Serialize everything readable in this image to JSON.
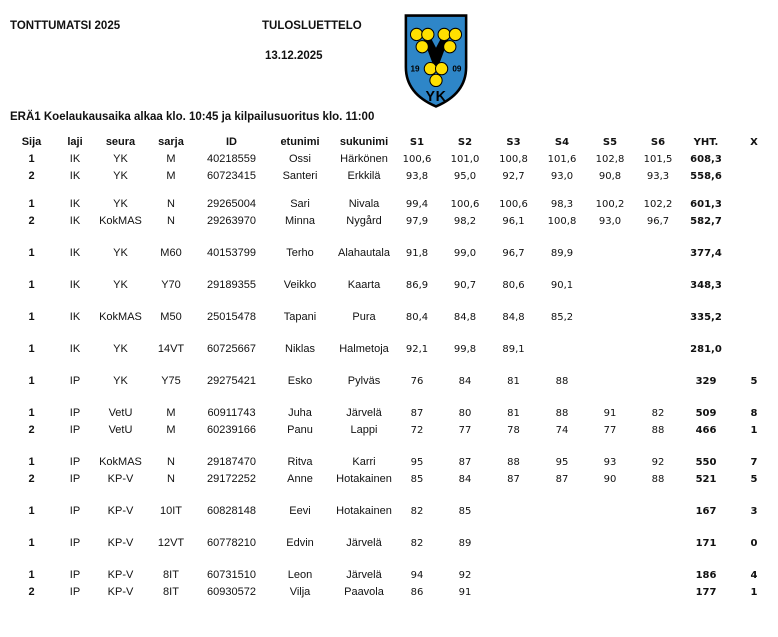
{
  "header": {
    "event_title": "TONTTUMATSI 2025",
    "doc_type": "TULOSLUETTELO",
    "date": "13.12.2025",
    "heat_info": "ERÄ1 Koelaukausaika alkaa klo. 10:45 ja kilpailusuoritus klo. 11:00"
  },
  "logo": {
    "year_left": "19",
    "year_right": "09",
    "initials": "YK",
    "colors": {
      "shield": "#2e86c8",
      "ball": "#ffe000",
      "outline": "#000000"
    }
  },
  "table": {
    "columns": [
      "Sija",
      "laji",
      "seura",
      "sarja",
      "ID",
      "etunimi",
      "sukunimi",
      "S1",
      "S2",
      "S3",
      "S4",
      "S5",
      "S6",
      "YHT.",
      "X"
    ],
    "groups": [
      {
        "rows": [
          {
            "sija": "1",
            "laji": "IK",
            "seura": "YK",
            "sarja": "M",
            "id": "40218559",
            "etunimi": "Ossi",
            "sukunimi": "Härkönen",
            "s": [
              "100,6",
              "101,0",
              "100,8",
              "101,6",
              "102,8",
              "101,5"
            ],
            "yht": "608,3",
            "x": ""
          },
          {
            "sija": "2",
            "laji": "IK",
            "seura": "YK",
            "sarja": "M",
            "id": "60723415",
            "etunimi": "Santeri",
            "sukunimi": "Erkkilä",
            "s": [
              "93,8",
              "95,0",
              "92,7",
              "93,0",
              "90,8",
              "93,3"
            ],
            "yht": "558,6",
            "x": ""
          }
        ]
      },
      {
        "rows": [
          {
            "sija": "1",
            "laji": "IK",
            "seura": "YK",
            "sarja": "N",
            "id": "29265004",
            "etunimi": "Sari",
            "sukunimi": "Nivala",
            "s": [
              "99,4",
              "100,6",
              "100,6",
              "98,3",
              "100,2",
              "102,2"
            ],
            "yht": "601,3",
            "x": ""
          },
          {
            "sija": "2",
            "laji": "IK",
            "seura": "KokMAS",
            "sarja": "N",
            "id": "29263970",
            "etunimi": "Minna",
            "sukunimi": "Nygård",
            "s": [
              "97,9",
              "98,2",
              "96,1",
              "100,8",
              "93,0",
              "96,7"
            ],
            "yht": "582,7",
            "x": ""
          }
        ]
      },
      {
        "rows": [
          {
            "sija": "1",
            "laji": "IK",
            "seura": "YK",
            "sarja": "M60",
            "id": "40153799",
            "etunimi": "Terho",
            "sukunimi": "Alahautala",
            "s": [
              "91,8",
              "99,0",
              "96,7",
              "89,9",
              "",
              ""
            ],
            "yht": "377,4",
            "x": ""
          }
        ]
      },
      {
        "rows": [
          {
            "sija": "1",
            "laji": "IK",
            "seura": "YK",
            "sarja": "Y70",
            "id": "29189355",
            "etunimi": "Veikko",
            "sukunimi": "Kaarta",
            "s": [
              "86,9",
              "90,7",
              "80,6",
              "90,1",
              "",
              ""
            ],
            "yht": "348,3",
            "x": ""
          }
        ]
      },
      {
        "rows": [
          {
            "sija": "1",
            "laji": "IK",
            "seura": "KokMAS",
            "sarja": "M50",
            "id": "25015478",
            "etunimi": "Tapani",
            "sukunimi": "Pura",
            "s": [
              "80,4",
              "84,8",
              "84,8",
              "85,2",
              "",
              ""
            ],
            "yht": "335,2",
            "x": ""
          }
        ]
      },
      {
        "rows": [
          {
            "sija": "1",
            "laji": "IK",
            "seura": "YK",
            "sarja": "14VT",
            "id": "60725667",
            "etunimi": "Niklas",
            "sukunimi": "Halmetoja",
            "s": [
              "92,1",
              "99,8",
              "89,1",
              "",
              "",
              ""
            ],
            "yht": "281,0",
            "x": ""
          }
        ]
      },
      {
        "rows": [
          {
            "sija": "1",
            "laji": "IP",
            "seura": "YK",
            "sarja": "Y75",
            "id": "29275421",
            "etunimi": "Esko",
            "sukunimi": "Pylväs",
            "s": [
              "76",
              "84",
              "81",
              "88",
              "",
              ""
            ],
            "yht": "329",
            "x": "5"
          }
        ]
      },
      {
        "rows": [
          {
            "sija": "1",
            "laji": "IP",
            "seura": "VetU",
            "sarja": "M",
            "id": "60911743",
            "etunimi": "Juha",
            "sukunimi": "Järvelä",
            "s": [
              "87",
              "80",
              "81",
              "88",
              "91",
              "82"
            ],
            "yht": "509",
            "x": "8"
          },
          {
            "sija": "2",
            "laji": "IP",
            "seura": "VetU",
            "sarja": "M",
            "id": "60239166",
            "etunimi": "Panu",
            "sukunimi": "Lappi",
            "s": [
              "72",
              "77",
              "78",
              "74",
              "77",
              "88"
            ],
            "yht": "466",
            "x": "1"
          }
        ]
      },
      {
        "rows": [
          {
            "sija": "1",
            "laji": "IP",
            "seura": "KokMAS",
            "sarja": "N",
            "id": "29187470",
            "etunimi": "Ritva",
            "sukunimi": "Karri",
            "s": [
              "95",
              "87",
              "88",
              "95",
              "93",
              "92"
            ],
            "yht": "550",
            "x": "7"
          },
          {
            "sija": "2",
            "laji": "IP",
            "seura": "KP-V",
            "sarja": "N",
            "id": "29172252",
            "etunimi": "Anne",
            "sukunimi": "Hotakainen",
            "s": [
              "85",
              "84",
              "87",
              "87",
              "90",
              "88"
            ],
            "yht": "521",
            "x": "5"
          }
        ]
      },
      {
        "rows": [
          {
            "sija": "1",
            "laji": "IP",
            "seura": "KP-V",
            "sarja": "10IT",
            "id": "60828148",
            "etunimi": "Eevi",
            "sukunimi": "Hotakainen",
            "s": [
              "82",
              "85",
              "",
              "",
              "",
              ""
            ],
            "yht": "167",
            "x": "3"
          }
        ]
      },
      {
        "rows": [
          {
            "sija": "1",
            "laji": "IP",
            "seura": "KP-V",
            "sarja": "12VT",
            "id": "60778210",
            "etunimi": "Edvin",
            "sukunimi": "Järvelä",
            "s": [
              "82",
              "89",
              "",
              "",
              "",
              ""
            ],
            "yht": "171",
            "x": "0"
          }
        ]
      },
      {
        "rows": [
          {
            "sija": "1",
            "laji": "IP",
            "seura": "KP-V",
            "sarja": "8IT",
            "id": "60731510",
            "etunimi": "Leon",
            "sukunimi": "Järvelä",
            "s": [
              "94",
              "92",
              "",
              "",
              "",
              ""
            ],
            "yht": "186",
            "x": "4"
          },
          {
            "sija": "2",
            "laji": "IP",
            "seura": "KP-V",
            "sarja": "8IT",
            "id": "60930572",
            "etunimi": "Vilja",
            "sukunimi": "Paavola",
            "s": [
              "86",
              "91",
              "",
              "",
              "",
              ""
            ],
            "yht": "177",
            "x": "1"
          }
        ]
      }
    ]
  }
}
